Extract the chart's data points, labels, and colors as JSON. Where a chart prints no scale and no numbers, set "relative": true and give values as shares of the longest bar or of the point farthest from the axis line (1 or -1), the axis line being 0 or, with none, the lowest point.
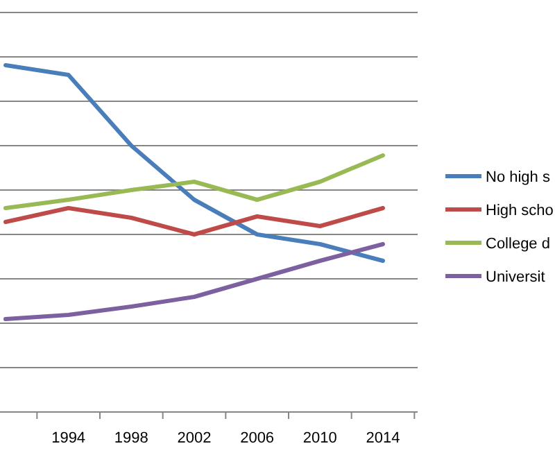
{
  "chart_data": {
    "type": "line",
    "relative": true,
    "grid": "y",
    "legend": "right",
    "marker": "none",
    "line_style": "solid",
    "categories": [
      null,
      "1994",
      "1998",
      "2002",
      "2006",
      "2010",
      "2014"
    ],
    "series": [
      {
        "name": "No high s",
        "color": "#4a7ebb",
        "values": [
          1,
          0.972,
          0.768,
          0.612,
          0.512,
          0.484,
          0.436
        ]
      },
      {
        "name": "High scho",
        "color": "#be4b48",
        "values": [
          0.548,
          0.588,
          0.56,
          0.512,
          0.564,
          0.536,
          0.588
        ]
      },
      {
        "name": "College d",
        "color": "#98b954",
        "values": [
          0.588,
          0.612,
          0.64,
          0.664,
          0.612,
          0.664,
          0.74
        ]
      },
      {
        "name": "Universit",
        "color": "#7d60a0",
        "values": [
          0.268,
          0.28,
          0.304,
          0.332,
          0.384,
          0.436,
          0.484
        ]
      }
    ]
  }
}
